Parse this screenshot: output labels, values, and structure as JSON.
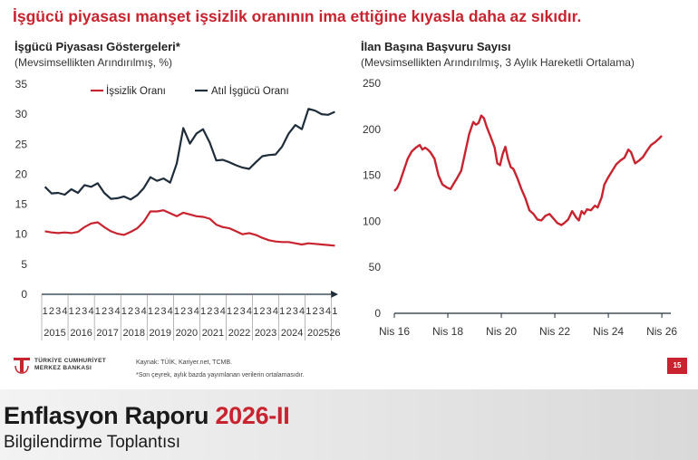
{
  "headline": "İşgücü piyasası manşet işsizlik oranının ima ettiğine kıyasla daha az sıkıdır.",
  "colors": {
    "accent": "#c8242f",
    "dark": "#1f2d3a"
  },
  "left": {
    "title": "İşgücü Piyasası Göstergeleri*",
    "subtitle": "(Mevsimsellikten Arındırılmış, %)"
  },
  "right": {
    "title": "İlan Başına Başvuru Sayısı",
    "subtitle": "(Mevsimsellikten Arındırılmış, 3 Aylık Hareketli Ortalama)"
  },
  "source": "Kaynak: TÜİK, Kariyer.net, TCMB.",
  "note": "*Son çeyrek, aylık bazda yayımlanan verilerin ortalamasıdır.",
  "logo": {
    "line1": "TÜRKİYE CUMHURİYET",
    "line2": "MERKEZ BANKASI"
  },
  "page_number": "15",
  "footer": {
    "report": "Enflasyon Raporu",
    "report_num": "2026-II",
    "meeting": "Bilgilendirme Toplantısı"
  },
  "chart_data": [
    {
      "type": "line",
      "ylim": [
        0,
        35
      ],
      "yticks": [
        0,
        5,
        10,
        15,
        20,
        25,
        30,
        35
      ],
      "legend_position": "top",
      "quarter_labels": [
        "1",
        "2",
        "3",
        "4",
        "1",
        "2",
        "3",
        "4",
        "1",
        "2",
        "3",
        "4",
        "1",
        "2",
        "3",
        "4",
        "1",
        "2",
        "3",
        "4",
        "1",
        "2",
        "3",
        "4",
        "1",
        "2",
        "3",
        "4",
        "1",
        "2",
        "3",
        "4",
        "1",
        "2",
        "3",
        "4",
        "1",
        "2",
        "3",
        "4",
        "1",
        "2",
        "3",
        "4",
        "1"
      ],
      "year_labels": [
        "2015",
        "2016",
        "2017",
        "2018",
        "2019",
        "2020",
        "2021",
        "2022",
        "2023",
        "2024",
        "2025",
        "26"
      ],
      "series": [
        {
          "name": "İşsizlik Oranı",
          "color": "#c8242f",
          "values": [
            10.5,
            10.3,
            10.2,
            10.3,
            10.2,
            10.4,
            11.2,
            11.8,
            12.0,
            11.2,
            10.5,
            10.1,
            9.9,
            10.4,
            11.0,
            12.1,
            13.8,
            13.8,
            14.0,
            13.5,
            13.0,
            13.6,
            13.3,
            13.0,
            12.9,
            12.6,
            11.6,
            11.2,
            11.0,
            10.5,
            10.0,
            10.2,
            9.9,
            9.4,
            9.0,
            8.8,
            8.7,
            8.7,
            8.5,
            8.3,
            8.5,
            8.4,
            8.3,
            8.2,
            8.1
          ]
        },
        {
          "name": "Atıl İşgücü Oranı",
          "color": "#1f2d3a",
          "values": [
            17.9,
            16.8,
            16.9,
            16.6,
            17.5,
            16.9,
            18.2,
            17.9,
            18.5,
            16.9,
            15.9,
            16.0,
            16.3,
            15.8,
            16.5,
            17.7,
            19.5,
            18.9,
            19.3,
            18.6,
            21.8,
            27.7,
            25.1,
            26.8,
            27.5,
            25.3,
            22.3,
            22.4,
            22.0,
            21.5,
            21.1,
            20.9,
            22.0,
            23.0,
            23.2,
            23.3,
            24.6,
            26.8,
            28.2,
            27.5,
            30.9,
            30.6,
            30.0,
            29.9,
            30.4
          ]
        }
      ]
    },
    {
      "type": "line",
      "ylim": [
        0,
        250
      ],
      "yticks": [
        0,
        50,
        100,
        150,
        200,
        250
      ],
      "xlim": [
        2016,
        2026.2
      ],
      "xtick_labels": [
        "Nis 16",
        "Nis 18",
        "Nis 20",
        "Nis 22",
        "Nis 24",
        "Nis 26"
      ],
      "xtick_values": [
        2016,
        2018,
        2020,
        2022,
        2024,
        2026
      ],
      "series": [
        {
          "color": "#c8242f",
          "x": [
            2016.0,
            2016.1,
            2016.2,
            2016.35,
            2016.5,
            2016.65,
            2016.8,
            2016.95,
            2017.05,
            2017.15,
            2017.25,
            2017.35,
            2017.5,
            2017.65,
            2017.8,
            2017.95,
            2018.1,
            2018.2,
            2018.35,
            2018.5,
            2018.65,
            2018.8,
            2018.95,
            2019.05,
            2019.15,
            2019.25,
            2019.35,
            2019.45,
            2019.6,
            2019.75,
            2019.85,
            2019.95,
            2020.05,
            2020.15,
            2020.25,
            2020.35,
            2020.45,
            2020.6,
            2020.75,
            2020.9,
            2021.05,
            2021.2,
            2021.35,
            2021.5,
            2021.65,
            2021.8,
            2021.95,
            2022.1,
            2022.25,
            2022.35,
            2022.5,
            2022.65,
            2022.8,
            2022.9,
            2023.0,
            2023.1,
            2023.2,
            2023.35,
            2023.5,
            2023.6,
            2023.75,
            2023.85,
            2024.0,
            2024.15,
            2024.3,
            2024.45,
            2024.6,
            2024.75,
            2024.85,
            2025.0,
            2025.15,
            2025.3,
            2025.45,
            2025.6,
            2025.75,
            2025.9,
            2026.0
          ],
          "values": [
            133,
            136,
            142,
            155,
            168,
            176,
            180,
            183,
            178,
            180,
            178,
            175,
            168,
            150,
            140,
            137,
            135,
            140,
            147,
            155,
            175,
            195,
            208,
            205,
            207,
            215,
            212,
            203,
            192,
            180,
            163,
            161,
            173,
            181,
            168,
            159,
            157,
            147,
            135,
            125,
            112,
            108,
            102,
            101,
            106,
            108,
            103,
            98,
            96,
            98,
            102,
            111,
            104,
            101,
            111,
            108,
            113,
            112,
            117,
            115,
            126,
            140,
            148,
            155,
            162,
            166,
            169,
            178,
            175,
            163,
            166,
            170,
            177,
            183,
            186,
            190,
            193
          ]
        }
      ]
    }
  ]
}
